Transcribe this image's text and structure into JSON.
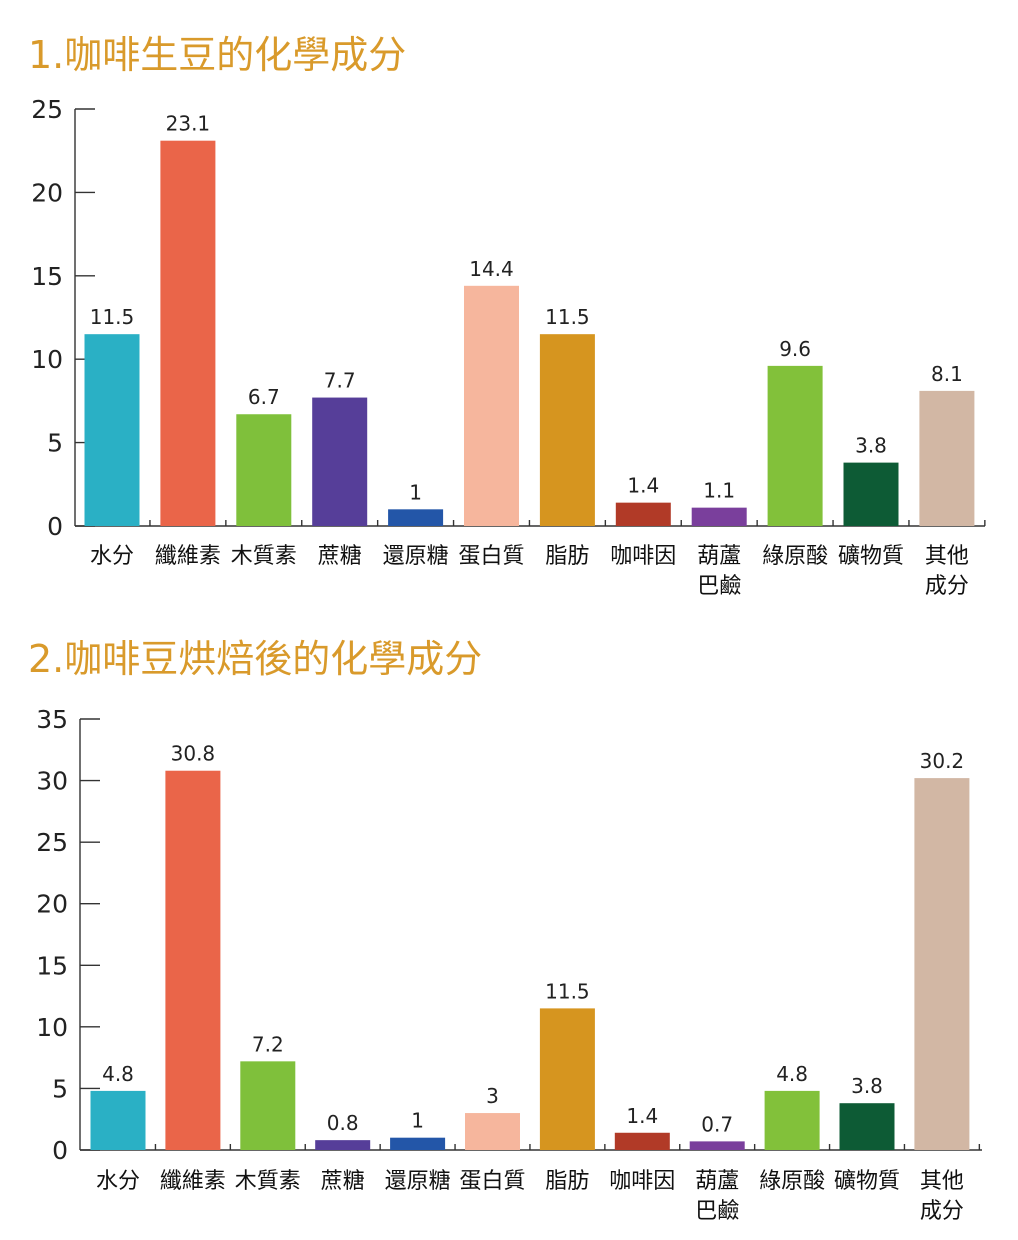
{
  "chart_data": [
    {
      "type": "bar",
      "title": "1.咖啡生豆的化學成分",
      "categories": [
        "水分",
        "纖維素",
        "木質素",
        "蔗糖",
        "還原糖",
        "蛋白質",
        "脂肪",
        "咖啡因",
        "葫蘆巴鹼",
        "綠原酸",
        "礦物質",
        "其他成分"
      ],
      "category_lines": [
        [
          "水分"
        ],
        [
          "纖維素"
        ],
        [
          "木質素"
        ],
        [
          "蔗糖"
        ],
        [
          "還原糖"
        ],
        [
          "蛋白質"
        ],
        [
          "脂肪"
        ],
        [
          "咖啡因"
        ],
        [
          "葫蘆",
          "巴鹼"
        ],
        [
          "綠原酸"
        ],
        [
          "礦物質"
        ],
        [
          "其他",
          "成分"
        ]
      ],
      "values": [
        11.5,
        23.1,
        6.7,
        7.7,
        1,
        14.4,
        11.5,
        1.4,
        1.1,
        9.6,
        3.8,
        8.1
      ],
      "value_labels": [
        "11.5",
        "23.1",
        "6.7",
        "7.7",
        "1",
        "14.4",
        "11.5",
        "1.4",
        "1.1",
        "9.6",
        "3.8",
        "8.1"
      ],
      "colors": [
        "#2ab0c5",
        "#ea6549",
        "#7fc03b",
        "#563e99",
        "#2356a8",
        "#f6b69d",
        "#d6951f",
        "#b13a27",
        "#7a3f9c",
        "#82c13a",
        "#0d5b35",
        "#d2b7a4"
      ],
      "ylim": [
        0,
        25
      ],
      "yticks": [
        0,
        5,
        10,
        15,
        20,
        25
      ],
      "grid": false,
      "legend": "none"
    },
    {
      "type": "bar",
      "title": "2.咖啡豆烘焙後的化學成分",
      "categories": [
        "水分",
        "纖維素",
        "木質素",
        "蔗糖",
        "還原糖",
        "蛋白質",
        "脂肪",
        "咖啡因",
        "葫蘆巴鹼",
        "綠原酸",
        "礦物質",
        "其他成分"
      ],
      "category_lines": [
        [
          "水分"
        ],
        [
          "纖維素"
        ],
        [
          "木質素"
        ],
        [
          "蔗糖"
        ],
        [
          "還原糖"
        ],
        [
          "蛋白質"
        ],
        [
          "脂肪"
        ],
        [
          "咖啡因"
        ],
        [
          "葫蘆",
          "巴鹼"
        ],
        [
          "綠原酸"
        ],
        [
          "礦物質"
        ],
        [
          "其他",
          "成分"
        ]
      ],
      "values": [
        4.8,
        30.8,
        7.2,
        0.8,
        1,
        3,
        11.5,
        1.4,
        0.7,
        4.8,
        3.8,
        30.2
      ],
      "value_labels": [
        "4.8",
        "30.8",
        "7.2",
        "0.8",
        "1",
        "3",
        "11.5",
        "1.4",
        "0.7",
        "4.8",
        "3.8",
        "30.2"
      ],
      "colors": [
        "#2ab0c5",
        "#ea6549",
        "#7fc03b",
        "#563e99",
        "#2356a8",
        "#f6b69d",
        "#d6951f",
        "#b13a27",
        "#7a3f9c",
        "#82c13a",
        "#0d5b35",
        "#d2b7a4"
      ],
      "ylim": [
        0,
        35
      ],
      "yticks": [
        0,
        5,
        10,
        15,
        20,
        25,
        30,
        35
      ],
      "grid": false,
      "legend": "none"
    }
  ]
}
